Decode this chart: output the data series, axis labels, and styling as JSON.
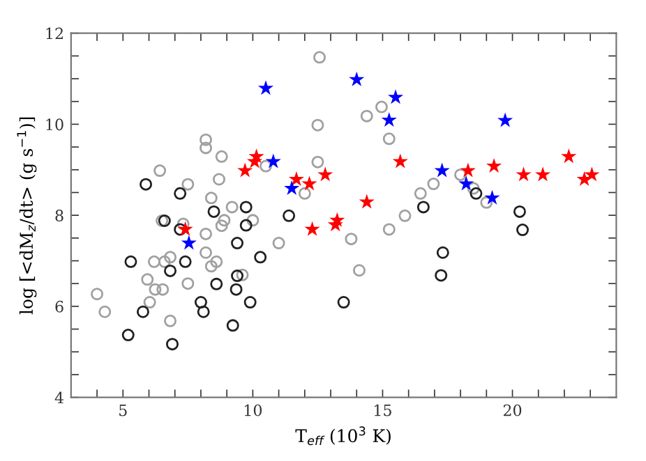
{
  "chart_data": {
    "type": "scatter",
    "xlabel": "T$_{eff}$ (10$^{3}$ K)",
    "ylabel": "log [<dM$_{z}$/dt> (g s$^{−1}$)]",
    "xlim": [
      3,
      24
    ],
    "ylim": [
      4,
      12
    ],
    "xticks": [
      {
        "value": 4,
        "label": null
      },
      5,
      {
        "value": 6,
        "label": null
      },
      {
        "value": 7,
        "label": null
      },
      {
        "value": 8,
        "label": null
      },
      {
        "value": 9,
        "label": null
      },
      10,
      {
        "value": 11,
        "label": null
      },
      {
        "value": 12,
        "label": null
      },
      {
        "value": 13,
        "label": null
      },
      {
        "value": 14,
        "label": null
      },
      15,
      {
        "value": 16,
        "label": null
      },
      {
        "value": 17,
        "label": null
      },
      {
        "value": 18,
        "label": null
      },
      {
        "value": 19,
        "label": null
      },
      20,
      {
        "value": 21,
        "label": null
      },
      {
        "value": 22,
        "label": null
      },
      {
        "value": 23,
        "label": null
      }
    ],
    "yticks": [
      4,
      {
        "value": 4.5,
        "label": null
      },
      {
        "value": 5,
        "label": null
      },
      {
        "value": 5.5,
        "label": null
      },
      6,
      {
        "value": 6.5,
        "label": null
      },
      {
        "value": 7,
        "label": null
      },
      {
        "value": 7.5,
        "label": null
      },
      8,
      {
        "value": 8.5,
        "label": null
      },
      {
        "value": 9,
        "label": null
      },
      {
        "value": 9.5,
        "label": null
      },
      10,
      {
        "value": 10.5,
        "label": null
      },
      {
        "value": 11,
        "label": null
      },
      {
        "value": 11.5,
        "label": null
      },
      12
    ],
    "grid": false,
    "legend": false,
    "series": [
      {
        "color": "#a0a0a0",
        "marker": "circle",
        "x": [
          4.0,
          4.3,
          6.42,
          5.94,
          6.03,
          6.2,
          6.24,
          6.53,
          6.6,
          6.82,
          6.82,
          6.5,
          7.32,
          7.5,
          7.5,
          8.19,
          8.19,
          8.19,
          8.19,
          8.4,
          8.4,
          8.6,
          8.7,
          8.8,
          8.8,
          8.9,
          9.2,
          9.6,
          10.0,
          12.57,
          12.5,
          12.5,
          14.39,
          14.96,
          15.25,
          10.5,
          12.0,
          11.0,
          13.79,
          14.1,
          15.25,
          15.86,
          16.46,
          16.96,
          18.0,
          18.5,
          19.0
        ],
        "values": [
          6.27,
          5.88,
          8.98,
          6.59,
          6.09,
          6.98,
          6.37,
          6.37,
          6.98,
          7.08,
          5.68,
          7.88,
          7.81,
          8.68,
          6.5,
          9.66,
          9.48,
          7.59,
          7.18,
          8.38,
          6.88,
          6.98,
          8.79,
          9.29,
          7.77,
          7.89,
          8.18,
          6.69,
          7.89,
          11.47,
          9.98,
          9.17,
          10.18,
          10.38,
          9.68,
          9.08,
          8.48,
          7.39,
          7.48,
          6.79,
          7.69,
          7.99,
          8.48,
          8.69,
          8.89,
          8.59,
          8.28
        ]
      },
      {
        "color": "#202020",
        "marker": "circle",
        "x": [
          5.88,
          6.6,
          7.2,
          7.2,
          7.4,
          5.3,
          6.82,
          8.5,
          9.74,
          9.74,
          9.4,
          9.4,
          8.6,
          9.36,
          8.0,
          8.1,
          5.77,
          5.2,
          6.9,
          9.23,
          9.9,
          11.39,
          10.29,
          13.5,
          16.57,
          17.32,
          17.25,
          18.6,
          20.28,
          20.39
        ],
        "values": [
          8.68,
          7.88,
          8.48,
          7.69,
          6.98,
          6.98,
          6.78,
          8.08,
          8.18,
          7.78,
          7.39,
          6.67,
          6.49,
          6.37,
          6.09,
          5.88,
          5.88,
          5.37,
          5.17,
          5.58,
          6.09,
          7.99,
          7.08,
          6.09,
          8.18,
          7.18,
          6.68,
          8.48,
          8.08,
          7.68
        ]
      },
      {
        "color": "#ff0000",
        "marker": "star",
        "x": [
          7.4,
          9.7,
          10.14,
          10.07,
          11.68,
          12.18,
          12.79,
          12.29,
          13.18,
          13.25,
          14.39,
          15.68,
          18.29,
          19.29,
          20.43,
          21.17,
          22.17,
          22.77,
          23.06
        ],
        "values": [
          7.69,
          8.98,
          9.29,
          9.18,
          8.79,
          8.69,
          8.89,
          7.69,
          7.79,
          7.89,
          8.29,
          9.18,
          8.98,
          9.08,
          8.89,
          8.89,
          9.29,
          8.79,
          8.89
        ]
      },
      {
        "color": "#0000ff",
        "marker": "star",
        "x": [
          7.54,
          10.5,
          10.79,
          11.5,
          14.0,
          15.5,
          15.25,
          17.29,
          18.22,
          19.22,
          19.72
        ],
        "values": [
          7.39,
          10.79,
          9.18,
          8.59,
          10.98,
          10.59,
          10.09,
          8.98,
          8.69,
          8.38,
          10.08
        ]
      }
    ]
  }
}
